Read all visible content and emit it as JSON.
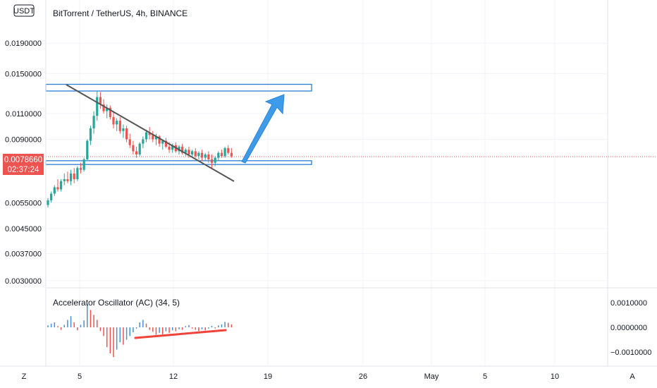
{
  "header": {
    "title": "BitTorrent / TetherUS, 4h, BINANCE",
    "currency_badge": "USDT"
  },
  "price_badge": {
    "price": "0.0078660",
    "countdown": "02:37:24",
    "color": "#ef5350"
  },
  "bottom_bar": {
    "left_button": "Z",
    "right_button": "A"
  },
  "colors": {
    "up": "#26a69a",
    "down": "#ef5350",
    "ac_up": "#4a8fd8",
    "ac_down": "#ef5350",
    "drawing_blue": "#2962ff",
    "arrow_blue": "#3d9be9",
    "trendline": "#555555",
    "grid": "#f0f3fa"
  },
  "chart_data": [
    {
      "type": "candlestick",
      "title": "BitTorrent / TetherUS, 4h, BINANCE",
      "y_scale": "log",
      "ylim": [
        0.0029,
        0.026
      ],
      "y_ticks": [
        "0.0190000",
        "0.0150000",
        "0.0110000",
        "0.0090000",
        "0.0055000",
        "0.0045000",
        "0.0037000",
        "0.0030000"
      ],
      "x_ticks": [
        "5",
        "12",
        "19",
        "26",
        "May",
        "5",
        "10"
      ],
      "last_price": 0.007866,
      "ohlc": [
        [
          0.0054,
          0.0057,
          0.0053,
          0.0056
        ],
        [
          0.0056,
          0.006,
          0.0055,
          0.0059
        ],
        [
          0.0059,
          0.0063,
          0.0058,
          0.0062
        ],
        [
          0.0062,
          0.0066,
          0.006,
          0.0061
        ],
        [
          0.0061,
          0.0066,
          0.006,
          0.0065
        ],
        [
          0.0065,
          0.0069,
          0.0063,
          0.0066
        ],
        [
          0.0066,
          0.007,
          0.0064,
          0.0065
        ],
        [
          0.0065,
          0.0071,
          0.0063,
          0.0069
        ],
        [
          0.0069,
          0.0072,
          0.0064,
          0.0066
        ],
        [
          0.0066,
          0.0073,
          0.0065,
          0.0072
        ],
        [
          0.0072,
          0.0075,
          0.0069,
          0.0071
        ],
        [
          0.0071,
          0.0078,
          0.007,
          0.0077
        ],
        [
          0.0077,
          0.009,
          0.0076,
          0.0089
        ],
        [
          0.0089,
          0.01,
          0.0086,
          0.0098
        ],
        [
          0.0098,
          0.0112,
          0.0094,
          0.0108
        ],
        [
          0.0108,
          0.0131,
          0.0104,
          0.0125
        ],
        [
          0.0125,
          0.013,
          0.0114,
          0.0118
        ],
        [
          0.0118,
          0.0123,
          0.011,
          0.0112
        ],
        [
          0.0112,
          0.0118,
          0.0106,
          0.0115
        ],
        [
          0.0115,
          0.0117,
          0.0105,
          0.0107
        ],
        [
          0.0107,
          0.0111,
          0.0098,
          0.0101
        ],
        [
          0.0101,
          0.0106,
          0.0096,
          0.0104
        ],
        [
          0.0104,
          0.0107,
          0.0094,
          0.0096
        ],
        [
          0.0096,
          0.0101,
          0.0091,
          0.0098
        ],
        [
          0.0098,
          0.01,
          0.0088,
          0.009
        ],
        [
          0.009,
          0.0094,
          0.0084,
          0.0086
        ],
        [
          0.0086,
          0.0089,
          0.008,
          0.0082
        ],
        [
          0.0082,
          0.0085,
          0.0078,
          0.008
        ],
        [
          0.008,
          0.0088,
          0.0079,
          0.0087
        ],
        [
          0.0087,
          0.0092,
          0.0084,
          0.009
        ],
        [
          0.009,
          0.0097,
          0.0088,
          0.0095
        ],
        [
          0.0095,
          0.0099,
          0.009,
          0.0093
        ],
        [
          0.0093,
          0.0096,
          0.0088,
          0.009
        ],
        [
          0.009,
          0.0094,
          0.0086,
          0.0092
        ],
        [
          0.0092,
          0.0093,
          0.0085,
          0.0087
        ],
        [
          0.0087,
          0.009,
          0.0083,
          0.0089
        ],
        [
          0.0089,
          0.0091,
          0.0084,
          0.0085
        ],
        [
          0.0085,
          0.0088,
          0.0081,
          0.0083
        ],
        [
          0.0083,
          0.0087,
          0.0081,
          0.0086
        ],
        [
          0.0086,
          0.0088,
          0.0081,
          0.0082
        ],
        [
          0.0082,
          0.0086,
          0.008,
          0.0085
        ],
        [
          0.0085,
          0.0087,
          0.008,
          0.0081
        ],
        [
          0.0081,
          0.0084,
          0.0079,
          0.0083
        ],
        [
          0.0083,
          0.0085,
          0.0078,
          0.008
        ],
        [
          0.008,
          0.0083,
          0.0078,
          0.0082
        ],
        [
          0.0082,
          0.0084,
          0.0078,
          0.0079
        ],
        [
          0.0079,
          0.0082,
          0.0077,
          0.0081
        ],
        [
          0.0081,
          0.0083,
          0.0076,
          0.0078
        ],
        [
          0.0078,
          0.0081,
          0.0076,
          0.008
        ],
        [
          0.008,
          0.0082,
          0.0075,
          0.0077
        ],
        [
          0.0077,
          0.008,
          0.0072,
          0.0075
        ],
        [
          0.0075,
          0.0079,
          0.0073,
          0.0078
        ],
        [
          0.0078,
          0.0082,
          0.0076,
          0.0081
        ],
        [
          0.0081,
          0.0083,
          0.0078,
          0.0079
        ],
        [
          0.0079,
          0.0085,
          0.0078,
          0.0084
        ],
        [
          0.0084,
          0.0086,
          0.008,
          0.0081
        ],
        [
          0.0081,
          0.0084,
          0.0078,
          0.0079
        ]
      ]
    },
    {
      "type": "bar",
      "title": "Accelerator Oscillator (AC) (34, 5)",
      "y_ticks": [
        "0.0010000",
        "0.0000000",
        "−0.0010000"
      ],
      "ylim": [
        -0.00145,
        0.00145
      ],
      "values": [
        8e-05,
        0.00015,
        0.0002,
        5e-05,
        -0.0001,
        0.0001,
        0.0003,
        0.00045,
        0.0002,
        -0.00012,
        0.0001,
        0.00028,
        0.00095,
        0.0007,
        0.0005,
        0.0003,
        -0.00015,
        -0.00035,
        -0.0008,
        -0.00105,
        -0.0012,
        -0.0009,
        -0.0006,
        -0.0007,
        -0.0005,
        -0.00035,
        -0.0002,
        -5e-05,
        0.0002,
        0.0003,
        0.00015,
        -0.0001,
        -0.00018,
        -0.0003,
        -0.00022,
        -0.00028,
        -0.00016,
        -0.00022,
        -0.00012,
        -0.00016,
        -8e-05,
        -0.0001,
        5e-05,
        9e-05,
        -5e-05,
        -0.0001,
        -0.00015,
        -8e-05,
        -0.00012,
        -5e-05,
        6e-05,
        -4e-05,
        8e-05,
        0.00012,
        0.00022,
        0.00018,
        0.00012
      ]
    }
  ]
}
